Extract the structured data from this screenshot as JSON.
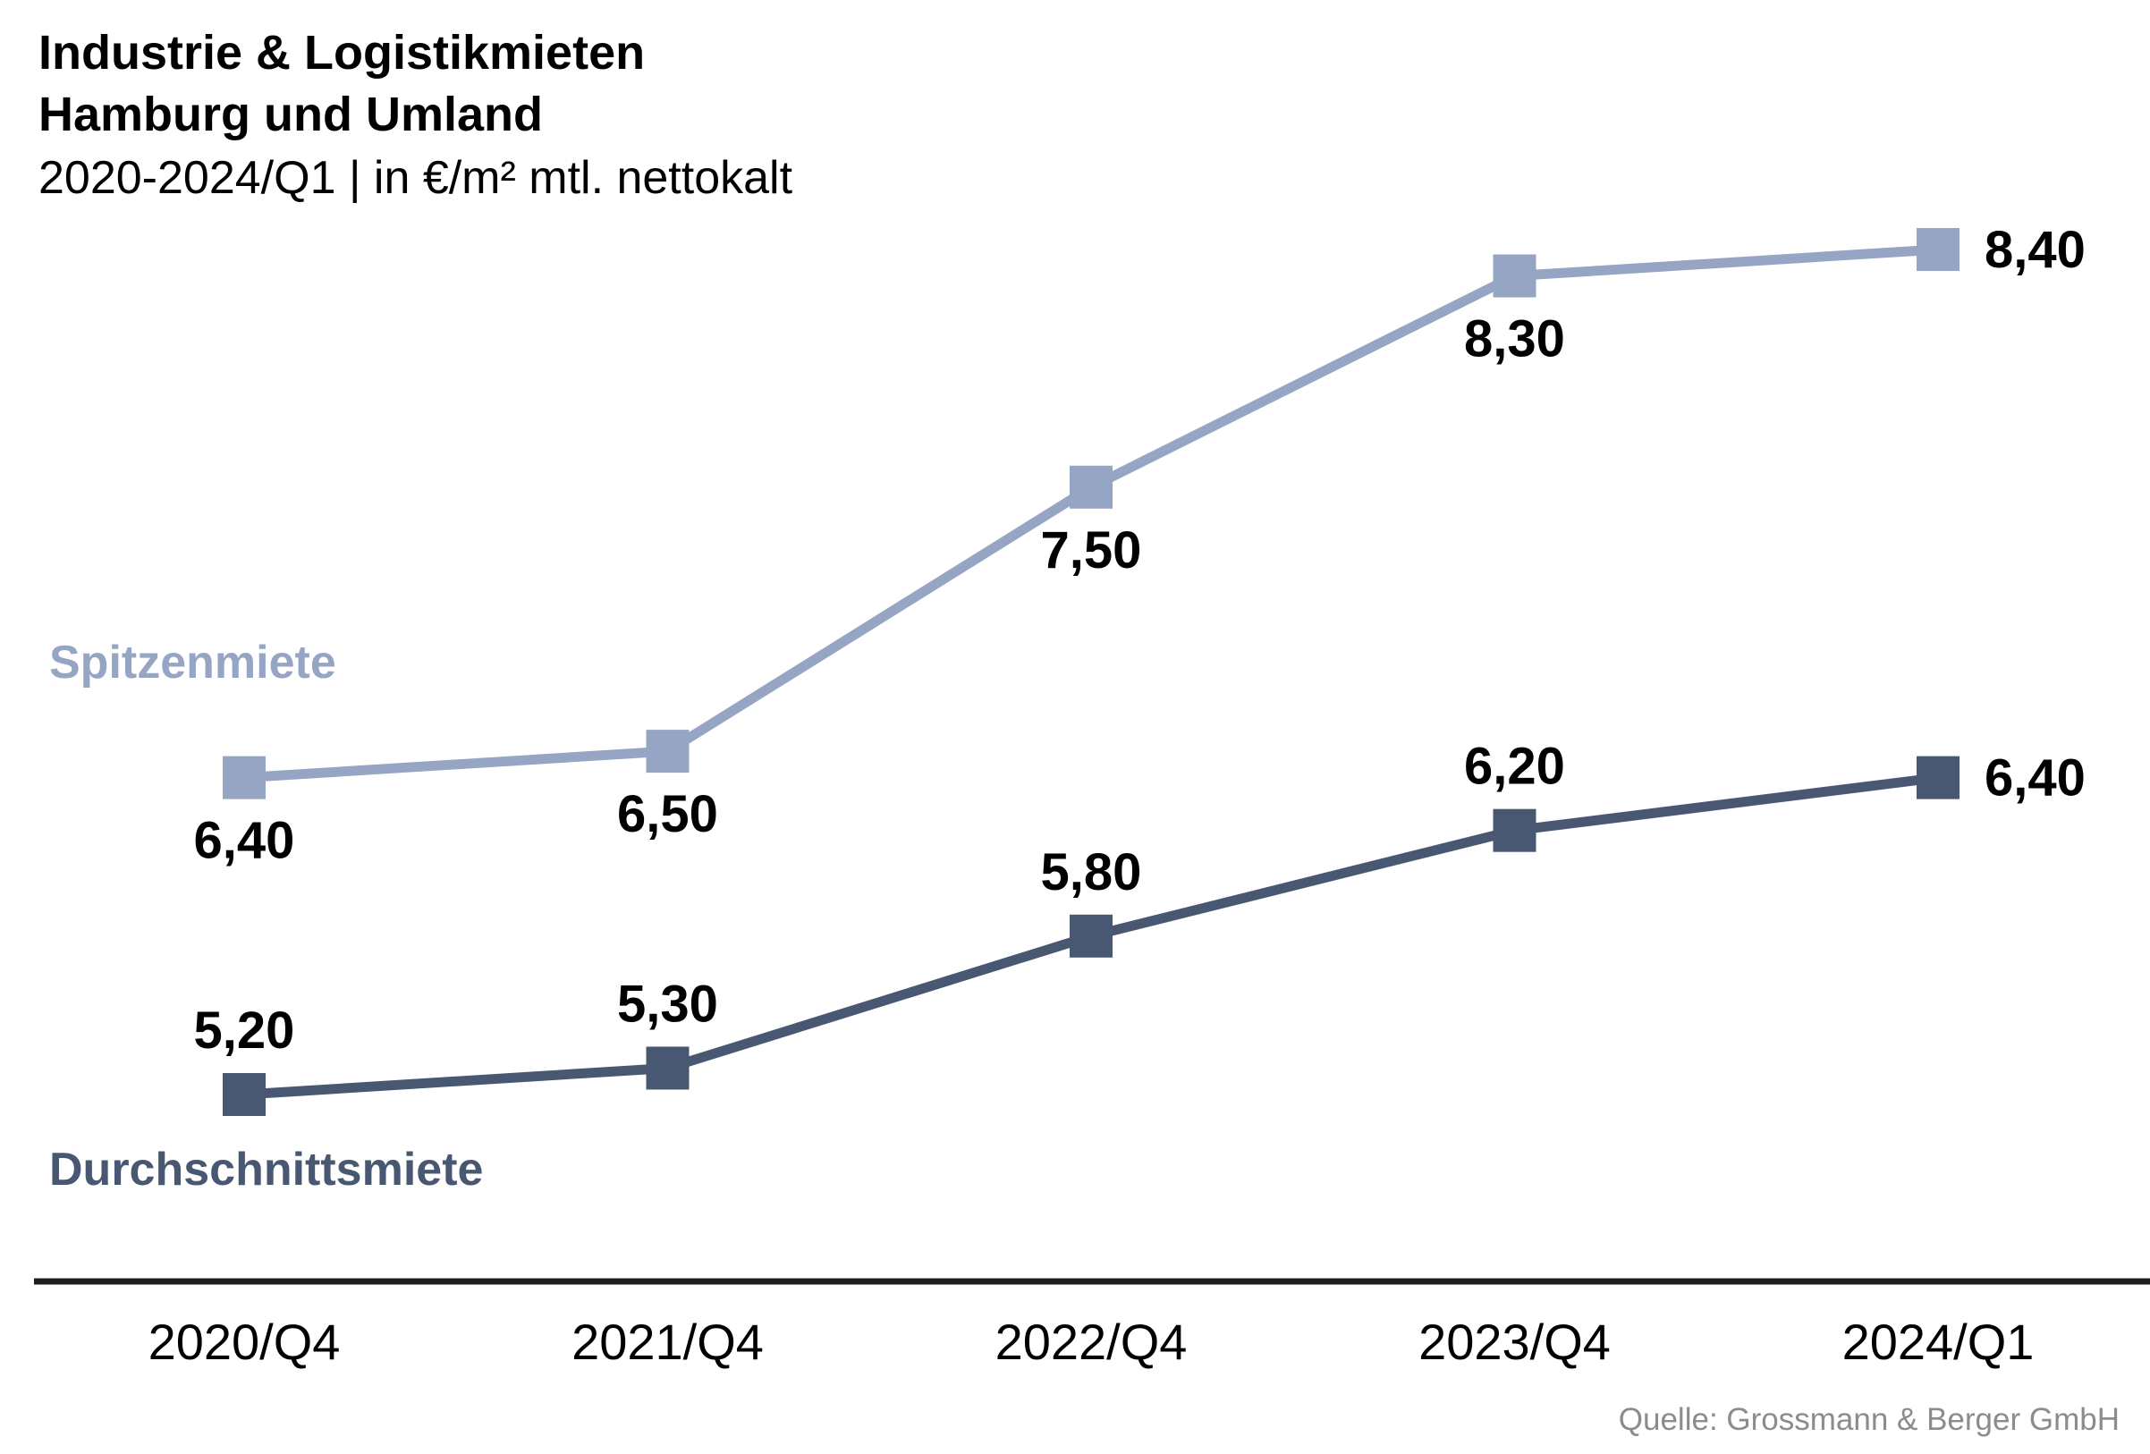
{
  "title_line1": "Industrie & Logistikmieten",
  "title_line2": "Hamburg und Umland",
  "subtitle": "2020-2024/Q1 | in €/m² mtl. nettokalt",
  "source": "Quelle: Grossmann & Berger GmbH",
  "colors": {
    "spitzenmiete": "#96a5c4",
    "durchschnittsmiete": "#485872",
    "axis": "#1e1e1e",
    "source_text": "#8c8c8c",
    "text": "#000000"
  },
  "chart_data": {
    "type": "line",
    "title": "Industrie & Logistikmieten Hamburg und Umland",
    "subtitle": "2020-2024/Q1 | in €/m² mtl. nettokalt",
    "categories": [
      "2020/Q4",
      "2021/Q4",
      "2022/Q4",
      "2023/Q4",
      "2024/Q1"
    ],
    "ylim": [
      4.8,
      8.6
    ],
    "grid": false,
    "legend": "inline-left",
    "series": [
      {
        "name": "Spitzenmiete",
        "values": [
          6.4,
          6.5,
          7.5,
          8.3,
          8.4
        ],
        "labels": [
          "6,40",
          "6,50",
          "7,50",
          "8,30",
          "8,40"
        ],
        "label_positions": [
          "below",
          "below",
          "below",
          "below",
          "right"
        ],
        "color": "#96a5c4"
      },
      {
        "name": "Durchschnittsmiete",
        "values": [
          5.2,
          5.3,
          5.8,
          6.2,
          6.4
        ],
        "labels": [
          "5,20",
          "5,30",
          "5,80",
          "6,20",
          "6,40"
        ],
        "label_positions": [
          "above",
          "above",
          "above",
          "above",
          "right"
        ],
        "color": "#485872"
      }
    ]
  }
}
